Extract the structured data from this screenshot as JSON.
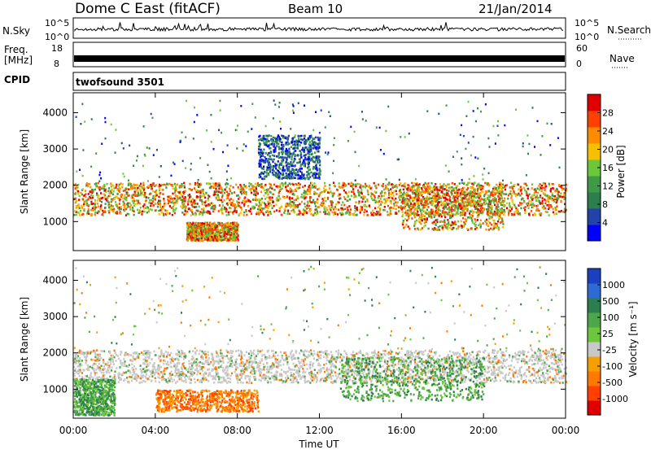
{
  "header": {
    "station": "Dome C East (fitACF)",
    "beam": "Beam 10",
    "date": "21/Jan/2014"
  },
  "panels": {
    "nsky": {
      "left_label": "N.Sky",
      "left_top": "10^5",
      "left_bottom": "10^0",
      "right_top": "10^5",
      "right_bottom": "10^0",
      "right_label": "N.Search"
    },
    "freq": {
      "left_label_1": "Freq.",
      "left_label_2": "[MHz]",
      "left_top": "18",
      "left_bottom": "8",
      "right_top": "60",
      "right_bottom": "0",
      "right_label": "Nave"
    },
    "cpid": {
      "label": "CPID",
      "value": "twofsound 3501"
    }
  },
  "chart_data": [
    {
      "type": "heatmap",
      "title": "",
      "xlabel": "Time UT",
      "ylabel": "Slant Range [km]",
      "colorbar_label": "Power [dB]",
      "x_ticks": [
        "00:00",
        "04:00",
        "08:00",
        "12:00",
        "16:00",
        "20:00",
        "00:00"
      ],
      "y_ticks": [
        1000,
        2000,
        3000,
        4000
      ],
      "ylim": [
        200,
        4550
      ],
      "colorbar_ticks": [
        4,
        8,
        12,
        16,
        20,
        24,
        28
      ],
      "colorbar_range": [
        0,
        32
      ],
      "colors": [
        "#0000ff",
        "#2244aa",
        "#2e7d4f",
        "#3f9a46",
        "#6cc83a",
        "#f5c000",
        "#ff8c00",
        "#ff4000",
        "#e00000"
      ],
      "bands": [
        {
          "x": [
            0,
            24
          ],
          "y": [
            1200,
            2100
          ],
          "dominant": 22
        },
        {
          "x": [
            5.5,
            8
          ],
          "y": [
            500,
            1000
          ],
          "dominant": 24
        },
        {
          "x": [
            16,
            21
          ],
          "y": [
            800,
            2000
          ],
          "dominant": 24
        },
        {
          "x": [
            9,
            12
          ],
          "y": [
            2200,
            3400
          ],
          "dominant": 10
        }
      ]
    },
    {
      "type": "heatmap",
      "title": "",
      "xlabel": "Time UT",
      "ylabel": "Slant Range [km]",
      "colorbar_label": "Velocity [m s^-1]",
      "x_ticks": [
        "00:00",
        "04:00",
        "08:00",
        "12:00",
        "16:00",
        "20:00",
        "00:00"
      ],
      "y_ticks": [
        1000,
        2000,
        3000,
        4000
      ],
      "ylim": [
        200,
        4550
      ],
      "colorbar_ticks": [
        "1000",
        "500",
        "100",
        "25",
        "-25",
        "-100",
        "-500",
        "-1000"
      ],
      "colors": [
        "#1a3fbf",
        "#2e6ad6",
        "#2e7d4f",
        "#4ea64a",
        "#6cc83a",
        "#c8c8c8",
        "#f5a000",
        "#ff7800",
        "#ff4000",
        "#e00000"
      ],
      "bands": [
        {
          "x": [
            0,
            24
          ],
          "y": [
            1200,
            2100
          ],
          "dominant": "25"
        },
        {
          "x": [
            4,
            9
          ],
          "y": [
            400,
            1000
          ],
          "dominant": "-100"
        },
        {
          "x": [
            13,
            20
          ],
          "y": [
            700,
            1900
          ],
          "dominant": "100"
        },
        {
          "x": [
            0,
            2
          ],
          "y": [
            300,
            1300
          ],
          "dominant": "100"
        }
      ]
    }
  ]
}
